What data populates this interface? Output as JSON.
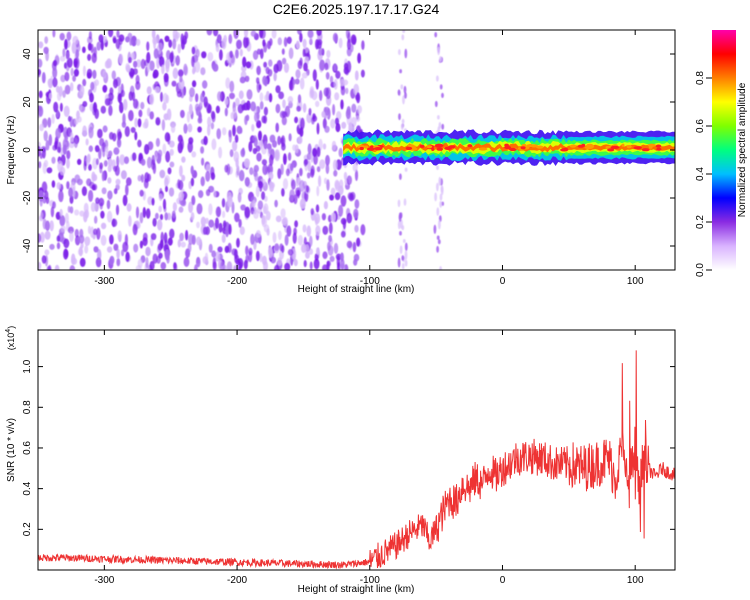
{
  "figure": {
    "title": "C2E6.2025.197.17.17.G24"
  },
  "chart_data": [
    {
      "type": "heatmap",
      "title": "C2E6.2025.197.17.17.G24",
      "xlabel": "Height of straight line (km)",
      "ylabel": "Frequency (Hz)",
      "xlim": [
        -350,
        130
      ],
      "ylim": [
        -50,
        50
      ],
      "x_ticks": [
        -300,
        -200,
        -100,
        0,
        100
      ],
      "y_ticks": [
        -40,
        -20,
        0,
        20,
        40
      ],
      "colorbar": {
        "label": "Normalized spectral amplitude",
        "range": [
          0.0,
          1.0
        ],
        "ticks": [
          0.0,
          0.2,
          0.4,
          0.6,
          0.8
        ],
        "tick_labels": [
          "0.0",
          "0.2",
          "0.4",
          "0.6",
          "0.8"
        ],
        "colormap": [
          "#ffffff",
          "#d9b3ff",
          "#8a2be2",
          "#0000ff",
          "#00bfff",
          "#00ff7f",
          "#7fff00",
          "#ffff00",
          "#ff7f00",
          "#ff0000",
          "#ff00aa"
        ]
      },
      "features": {
        "noise_region_x": [
          -350,
          -105
        ],
        "signal_band_x": [
          -120,
          130
        ],
        "signal_band_center_hz": 1,
        "signal_band_halfwidth_hz": 3,
        "noise_stripes_x": [
          -75,
          -48
        ]
      },
      "grid": false
    },
    {
      "type": "line",
      "xlabel": "Height of straight line (km)",
      "ylabel": "SNR (10 * v/v)",
      "y_multiplier_label": "(x10",
      "y_multiplier_exponent": "4",
      "xlim": [
        -350,
        130
      ],
      "ylim": [
        0,
        1.18
      ],
      "x_ticks": [
        -300,
        -200,
        -100,
        0,
        100
      ],
      "y_ticks": [
        0.2,
        0.4,
        0.6,
        0.8,
        1.0
      ],
      "y_tick_labels": [
        "0.2",
        "0.4",
        "0.6",
        "0.8",
        "1.0"
      ],
      "color": "#ee3333",
      "grid": false,
      "series": [
        {
          "x": [
            -350,
            -330,
            -300,
            -270,
            -240,
            -210,
            -180,
            -150,
            -120,
            -100,
            -90,
            -80,
            -70,
            -60,
            -55,
            -50,
            -45,
            -40,
            -35,
            -30,
            -25,
            -20,
            -15,
            -10,
            -5,
            0,
            5,
            10,
            20,
            30,
            40,
            50,
            60,
            70,
            80,
            85,
            90,
            95,
            100,
            103,
            106,
            110,
            115,
            120,
            125,
            130
          ],
          "y": [
            0.06,
            0.06,
            0.055,
            0.05,
            0.045,
            0.04,
            0.035,
            0.03,
            0.025,
            0.04,
            0.08,
            0.12,
            0.18,
            0.22,
            0.14,
            0.2,
            0.28,
            0.35,
            0.33,
            0.42,
            0.4,
            0.45,
            0.42,
            0.5,
            0.46,
            0.5,
            0.52,
            0.55,
            0.56,
            0.55,
            0.52,
            0.52,
            0.5,
            0.52,
            0.55,
            0.45,
            0.6,
            0.4,
            0.62,
            0.35,
            0.55,
            0.5,
            0.46,
            0.5,
            0.48,
            0.47
          ]
        }
      ]
    }
  ]
}
